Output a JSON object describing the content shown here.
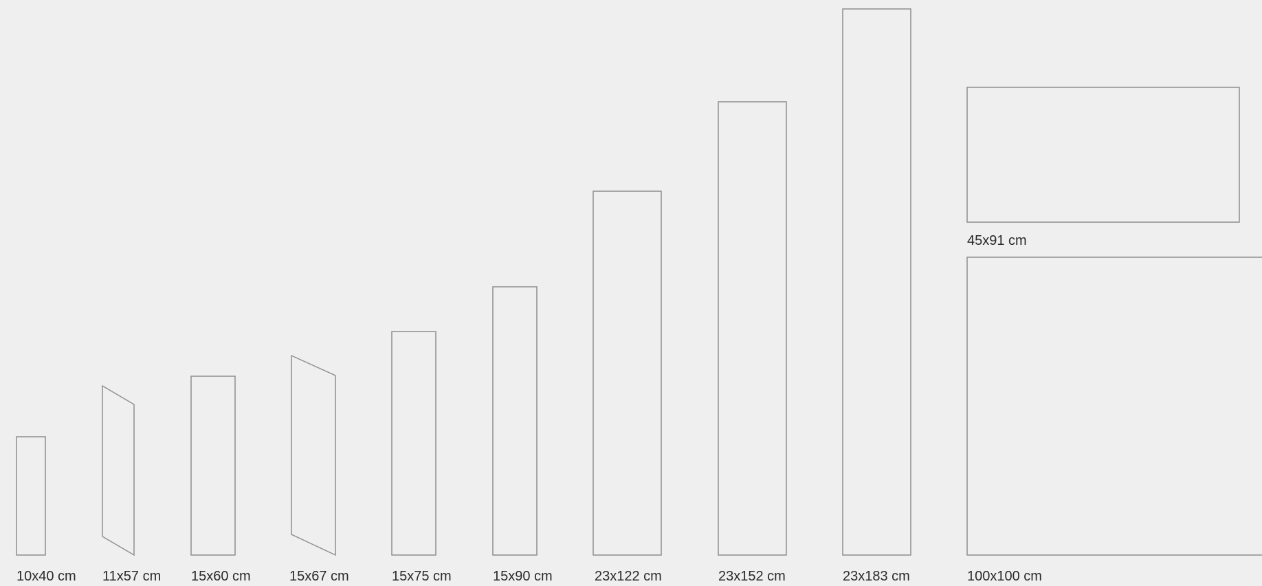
{
  "background": "#efefef",
  "stroke_color": "#8e8e8e",
  "text_color": "#2a2a2a",
  "sizes": [
    {
      "label": "10x40 cm",
      "width_cm": 10,
      "height_cm": 40,
      "shape": "rectangle"
    },
    {
      "label": "11x57 cm",
      "width_cm": 11,
      "height_cm": 57,
      "shape": "slanted-parallelogram"
    },
    {
      "label": "15x60 cm",
      "width_cm": 15,
      "height_cm": 60,
      "shape": "rectangle"
    },
    {
      "label": "15x67 cm",
      "width_cm": 15,
      "height_cm": 67,
      "shape": "slanted-parallelogram"
    },
    {
      "label": "15x75 cm",
      "width_cm": 15,
      "height_cm": 75,
      "shape": "rectangle"
    },
    {
      "label": "15x90 cm",
      "width_cm": 15,
      "height_cm": 90,
      "shape": "rectangle"
    },
    {
      "label": "23x122 cm",
      "width_cm": 23,
      "height_cm": 122,
      "shape": "rectangle"
    },
    {
      "label": "23x152 cm",
      "width_cm": 23,
      "height_cm": 152,
      "shape": "rectangle"
    },
    {
      "label": "23x183 cm",
      "width_cm": 23,
      "height_cm": 183,
      "shape": "rectangle"
    },
    {
      "label": "45x91 cm",
      "width_cm": 91,
      "height_cm": 45,
      "shape": "rectangle"
    },
    {
      "label": "100x100 cm",
      "width_cm": 100,
      "height_cm": 100,
      "shape": "rectangle"
    }
  ]
}
